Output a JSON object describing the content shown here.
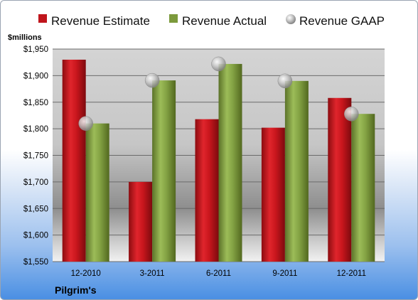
{
  "legend": [
    {
      "label": "Revenue Estimate",
      "color": "#c0151c",
      "marker": "square"
    },
    {
      "label": "Revenue Actual",
      "color": "#7c9a3c",
      "marker": "square"
    },
    {
      "label": "Revenue GAAP",
      "color": "#a6a6a6",
      "marker": "circle"
    }
  ],
  "company": "Pilgrim's",
  "chart_data": {
    "type": "bar",
    "ylabel": "$millions",
    "ylim": [
      1550,
      1950
    ],
    "yticks": [
      1550,
      1600,
      1650,
      1700,
      1750,
      1800,
      1850,
      1900,
      1950
    ],
    "yticklabels": [
      "$1,550",
      "$1,600",
      "$1,650",
      "$1,700",
      "$1,750",
      "$1,800",
      "$1,850",
      "$1,900",
      "$1,950"
    ],
    "categories": [
      "12-2010",
      "3-2011",
      "6-2011",
      "9-2011",
      "12-2011"
    ],
    "series": [
      {
        "name": "Revenue Estimate",
        "type": "bar",
        "values": [
          1930,
          1700,
          1818,
          1802,
          1858
        ]
      },
      {
        "name": "Revenue Actual",
        "type": "bar",
        "values": [
          1810,
          1891,
          1922,
          1890,
          1828
        ]
      },
      {
        "name": "Revenue GAAP",
        "type": "marker",
        "values": [
          1810,
          1891,
          1922,
          1890,
          1828
        ]
      }
    ],
    "grid": true,
    "legend_position": "top"
  }
}
